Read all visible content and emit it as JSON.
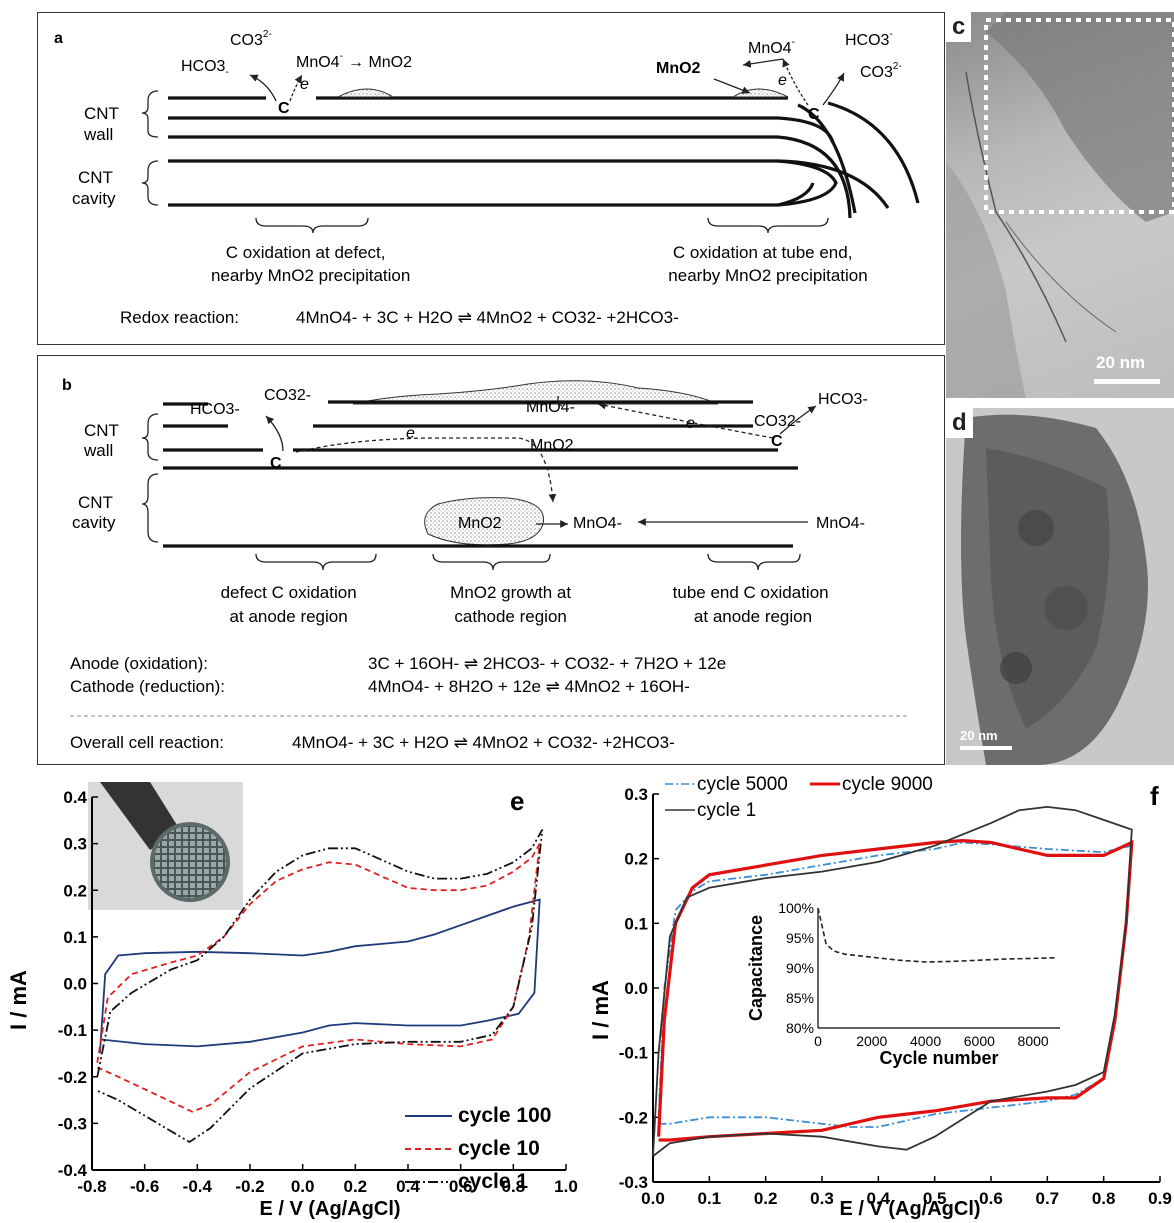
{
  "panel_a": {
    "label": "a",
    "wall": [
      "CNT",
      "wall"
    ],
    "cavity": [
      "CNT",
      "cavity"
    ],
    "left_species": [
      "CO3",
      "2-",
      "HCO3",
      "-",
      "MnO4",
      "-",
      "→ MnO2",
      "e",
      "C"
    ],
    "right_species": [
      "HCO3",
      "-",
      "CO3",
      "2-",
      "MnO2",
      "MnO4",
      "-",
      "e",
      "C"
    ],
    "left_caption": [
      "C oxidation at defect,",
      "nearby MnO2 precipitation"
    ],
    "right_caption": [
      "C oxidation at tube end,",
      "nearby MnO2 precipitation"
    ],
    "reaction_label": "Redox reaction:",
    "reaction": "4MnO4- + 3C + H2O ⇌ 4MnO2 + CO32- +2HCO3-"
  },
  "panel_b": {
    "label": "b",
    "wall": [
      "CNT",
      "wall"
    ],
    "cavity": [
      "CNT",
      "cavity"
    ],
    "species": [
      "HCO3-",
      "CO32-",
      "MnO4-",
      "MnO2",
      "CO32-",
      "HCO3-",
      "C",
      "C",
      "e",
      "e",
      "MnO2",
      "MnO4-",
      "MnO4-"
    ],
    "captions": [
      [
        "defect C oxidation",
        "at anode region"
      ],
      [
        "MnO2 growth at",
        "cathode region"
      ],
      [
        "tube end C oxidation",
        "at anode region"
      ]
    ],
    "anode_label": "Anode (oxidation):",
    "anode_eq": "3C + 16OH- ⇌ 2HCO3- + CO32- + 7H2O + 12e",
    "cathode_label": "Cathode (reduction):",
    "cathode_eq": "4MnO4- + 8H2O + 12e ⇌ 4MnO2 + 16OH-",
    "overall_label": "Overall cell reaction:",
    "overall_eq": "4MnO4- + 3C + H2O ⇌ 4MnO2 + CO32- +2HCO3-"
  },
  "panel_c": {
    "label": "c",
    "scale": "20 nm"
  },
  "panel_d": {
    "label": "d",
    "scale": "20 nm"
  },
  "chart_data": [
    {
      "panel": "e",
      "type": "line",
      "xlabel": "E / V (Ag/AgCl)",
      "ylabel": "I / mA",
      "xlim": [
        -0.8,
        1.0
      ],
      "ylim": [
        -0.4,
        0.4
      ],
      "xticks": [
        "-0.8",
        "-0.6",
        "-0.4",
        "-0.2",
        "0.0",
        "0.2",
        "0.4",
        "0.6",
        "0.8",
        "1.0"
      ],
      "yticks": [
        "-0.4",
        "-0.3",
        "-0.2",
        "-0.1",
        "0.0",
        "0.1",
        "0.2",
        "0.3",
        "0.4"
      ],
      "legend_position": "bottom-right",
      "series": [
        {
          "name": "cycle 100",
          "color": "#1f3a7a",
          "dash": "",
          "upper": [
            [
              -0.77,
              -0.15
            ],
            [
              -0.75,
              0.02
            ],
            [
              -0.7,
              0.06
            ],
            [
              -0.6,
              0.065
            ],
            [
              -0.4,
              0.068
            ],
            [
              -0.2,
              0.065
            ],
            [
              0.0,
              0.06
            ],
            [
              0.1,
              0.068
            ],
            [
              0.2,
              0.08
            ],
            [
              0.3,
              0.085
            ],
            [
              0.4,
              0.09
            ],
            [
              0.5,
              0.105
            ],
            [
              0.6,
              0.125
            ],
            [
              0.7,
              0.145
            ],
            [
              0.8,
              0.165
            ],
            [
              0.9,
              0.18
            ]
          ],
          "lower": [
            [
              0.9,
              0.18
            ],
            [
              0.88,
              -0.02
            ],
            [
              0.82,
              -0.065
            ],
            [
              0.7,
              -0.08
            ],
            [
              0.6,
              -0.09
            ],
            [
              0.4,
              -0.09
            ],
            [
              0.2,
              -0.085
            ],
            [
              0.1,
              -0.09
            ],
            [
              0.0,
              -0.105
            ],
            [
              -0.2,
              -0.125
            ],
            [
              -0.4,
              -0.135
            ],
            [
              -0.6,
              -0.13
            ],
            [
              -0.77,
              -0.12
            ]
          ]
        },
        {
          "name": "cycle 10",
          "color": "#e02020",
          "dash": "6,4",
          "upper": [
            [
              -0.78,
              -0.17
            ],
            [
              -0.74,
              -0.03
            ],
            [
              -0.65,
              0.02
            ],
            [
              -0.5,
              0.045
            ],
            [
              -0.4,
              0.06
            ],
            [
              -0.3,
              0.1
            ],
            [
              -0.2,
              0.17
            ],
            [
              -0.1,
              0.22
            ],
            [
              0.0,
              0.245
            ],
            [
              0.1,
              0.26
            ],
            [
              0.2,
              0.255
            ],
            [
              0.3,
              0.23
            ],
            [
              0.4,
              0.205
            ],
            [
              0.5,
              0.2
            ],
            [
              0.6,
              0.2
            ],
            [
              0.7,
              0.21
            ],
            [
              0.8,
              0.24
            ],
            [
              0.87,
              0.27
            ],
            [
              0.9,
              0.3
            ]
          ],
          "lower": [
            [
              0.9,
              0.3
            ],
            [
              0.86,
              0.1
            ],
            [
              0.8,
              -0.05
            ],
            [
              0.72,
              -0.12
            ],
            [
              0.6,
              -0.135
            ],
            [
              0.4,
              -0.13
            ],
            [
              0.2,
              -0.12
            ],
            [
              0.0,
              -0.135
            ],
            [
              -0.2,
              -0.19
            ],
            [
              -0.35,
              -0.26
            ],
            [
              -0.42,
              -0.275
            ],
            [
              -0.55,
              -0.24
            ],
            [
              -0.7,
              -0.2
            ],
            [
              -0.78,
              -0.18
            ]
          ]
        },
        {
          "name": "cycle 1",
          "color": "#111111",
          "dash": "10,3,2,3,2,3",
          "upper": [
            [
              -0.78,
              -0.2
            ],
            [
              -0.73,
              -0.06
            ],
            [
              -0.65,
              -0.02
            ],
            [
              -0.5,
              0.03
            ],
            [
              -0.4,
              0.05
            ],
            [
              -0.3,
              0.1
            ],
            [
              -0.2,
              0.18
            ],
            [
              -0.1,
              0.24
            ],
            [
              0.0,
              0.275
            ],
            [
              0.1,
              0.29
            ],
            [
              0.2,
              0.29
            ],
            [
              0.3,
              0.265
            ],
            [
              0.4,
              0.24
            ],
            [
              0.5,
              0.225
            ],
            [
              0.6,
              0.225
            ],
            [
              0.7,
              0.235
            ],
            [
              0.8,
              0.26
            ],
            [
              0.87,
              0.29
            ],
            [
              0.91,
              0.33
            ]
          ],
          "lower": [
            [
              0.91,
              0.33
            ],
            [
              0.87,
              0.12
            ],
            [
              0.8,
              -0.05
            ],
            [
              0.72,
              -0.11
            ],
            [
              0.6,
              -0.125
            ],
            [
              0.4,
              -0.125
            ],
            [
              0.2,
              -0.13
            ],
            [
              0.0,
              -0.15
            ],
            [
              -0.2,
              -0.225
            ],
            [
              -0.35,
              -0.31
            ],
            [
              -0.43,
              -0.34
            ],
            [
              -0.55,
              -0.3
            ],
            [
              -0.7,
              -0.25
            ],
            [
              -0.78,
              -0.23
            ]
          ]
        }
      ]
    },
    {
      "panel": "f",
      "type": "line",
      "xlabel": "E / V (Ag/AgCl)",
      "ylabel": "I / mA",
      "xlim": [
        0.0,
        0.9
      ],
      "ylim": [
        -0.3,
        0.3
      ],
      "xticks": [
        "0.0",
        "0.1",
        "0.2",
        "0.3",
        "0.4",
        "0.5",
        "0.6",
        "0.7",
        "0.8",
        "0.9"
      ],
      "yticks": [
        "-0.3",
        "-0.2",
        "-0.1",
        "0.0",
        "0.1",
        "0.2",
        "0.3"
      ],
      "legend_position": "top",
      "series": [
        {
          "name": "cycle 5000",
          "color": "#3a8fd8",
          "dash": "8,3,2,3",
          "upper": [
            [
              0.01,
              -0.2
            ],
            [
              0.02,
              0.0
            ],
            [
              0.04,
              0.12
            ],
            [
              0.07,
              0.15
            ],
            [
              0.1,
              0.165
            ],
            [
              0.2,
              0.175
            ],
            [
              0.3,
              0.19
            ],
            [
              0.4,
              0.205
            ],
            [
              0.5,
              0.215
            ],
            [
              0.55,
              0.225
            ],
            [
              0.6,
              0.222
            ],
            [
              0.7,
              0.215
            ],
            [
              0.8,
              0.21
            ],
            [
              0.85,
              0.22
            ]
          ],
          "lower": [
            [
              0.85,
              0.22
            ],
            [
              0.84,
              0.1
            ],
            [
              0.82,
              -0.05
            ],
            [
              0.8,
              -0.14
            ],
            [
              0.75,
              -0.165
            ],
            [
              0.7,
              -0.175
            ],
            [
              0.6,
              -0.185
            ],
            [
              0.5,
              -0.195
            ],
            [
              0.4,
              -0.215
            ],
            [
              0.35,
              -0.215
            ],
            [
              0.2,
              -0.2
            ],
            [
              0.1,
              -0.2
            ],
            [
              0.03,
              -0.21
            ],
            [
              0.01,
              -0.21
            ]
          ]
        },
        {
          "name": "cycle 9000",
          "color": "#e01010",
          "dash": "",
          "upper": [
            [
              0.01,
              -0.23
            ],
            [
              0.02,
              -0.05
            ],
            [
              0.04,
              0.1
            ],
            [
              0.07,
              0.155
            ],
            [
              0.1,
              0.175
            ],
            [
              0.2,
              0.19
            ],
            [
              0.3,
              0.205
            ],
            [
              0.4,
              0.215
            ],
            [
              0.5,
              0.225
            ],
            [
              0.55,
              0.228
            ],
            [
              0.6,
              0.225
            ],
            [
              0.7,
              0.205
            ],
            [
              0.8,
              0.205
            ],
            [
              0.85,
              0.225
            ]
          ],
          "lower": [
            [
              0.85,
              0.225
            ],
            [
              0.84,
              0.1
            ],
            [
              0.82,
              -0.05
            ],
            [
              0.8,
              -0.14
            ],
            [
              0.75,
              -0.17
            ],
            [
              0.7,
              -0.17
            ],
            [
              0.6,
              -0.175
            ],
            [
              0.5,
              -0.19
            ],
            [
              0.4,
              -0.2
            ],
            [
              0.3,
              -0.22
            ],
            [
              0.2,
              -0.225
            ],
            [
              0.1,
              -0.23
            ],
            [
              0.03,
              -0.235
            ],
            [
              0.01,
              -0.235
            ]
          ]
        },
        {
          "name": "cycle 1",
          "color": "#333333",
          "dash": "",
          "upper": [
            [
              0.0,
              -0.26
            ],
            [
              0.01,
              -0.1
            ],
            [
              0.03,
              0.08
            ],
            [
              0.06,
              0.14
            ],
            [
              0.1,
              0.155
            ],
            [
              0.2,
              0.17
            ],
            [
              0.3,
              0.18
            ],
            [
              0.4,
              0.195
            ],
            [
              0.5,
              0.22
            ],
            [
              0.6,
              0.255
            ],
            [
              0.65,
              0.275
            ],
            [
              0.7,
              0.28
            ],
            [
              0.75,
              0.275
            ],
            [
              0.8,
              0.26
            ],
            [
              0.85,
              0.245
            ]
          ],
          "lower": [
            [
              0.85,
              0.245
            ],
            [
              0.84,
              0.1
            ],
            [
              0.82,
              -0.04
            ],
            [
              0.8,
              -0.13
            ],
            [
              0.75,
              -0.15
            ],
            [
              0.7,
              -0.16
            ],
            [
              0.6,
              -0.175
            ],
            [
              0.5,
              -0.23
            ],
            [
              0.45,
              -0.25
            ],
            [
              0.4,
              -0.245
            ],
            [
              0.3,
              -0.23
            ],
            [
              0.2,
              -0.225
            ],
            [
              0.1,
              -0.23
            ],
            [
              0.03,
              -0.24
            ],
            [
              0.0,
              -0.26
            ]
          ]
        }
      ],
      "inset": {
        "type": "line",
        "xlabel": "Cycle number",
        "ylabel": "Capacitance",
        "xlim": [
          0,
          9000
        ],
        "ylim": [
          80,
          100
        ],
        "xticks": [
          "0",
          "2000",
          "4000",
          "6000",
          "8000"
        ],
        "yticks": [
          "80%",
          "85%",
          "90%",
          "95%",
          "100%"
        ],
        "points": [
          [
            0,
            100
          ],
          [
            100,
            98
          ],
          [
            300,
            94
          ],
          [
            600,
            92.8
          ],
          [
            1000,
            92.3
          ],
          [
            2000,
            91.8
          ],
          [
            3000,
            91.3
          ],
          [
            4000,
            91.0
          ],
          [
            5000,
            91.1
          ],
          [
            6000,
            91.3
          ],
          [
            7000,
            91.5
          ],
          [
            8000,
            91.6
          ],
          [
            8800,
            91.7
          ]
        ]
      }
    }
  ]
}
